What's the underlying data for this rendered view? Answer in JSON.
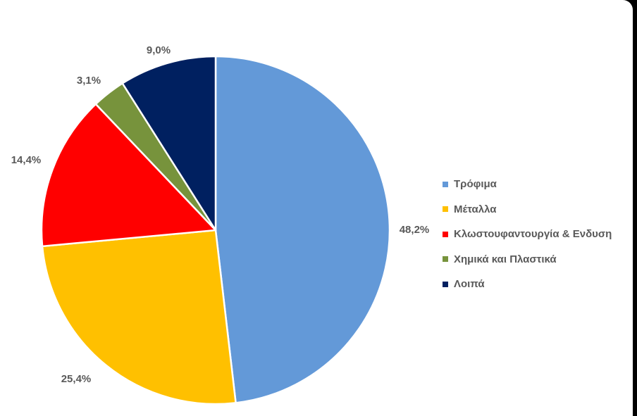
{
  "chart_data": {
    "type": "pie",
    "categories": [
      "Τρόφιμα",
      "Μέταλλα",
      "Κλωστουφαντουργία & Ενδυση",
      "Χημικά και Πλαστικά",
      "Λοιπά"
    ],
    "values": [
      48.2,
      25.4,
      14.4,
      3.1,
      9.0
    ],
    "data_labels": [
      "48,2%",
      "25,4%",
      "14,4%",
      "3,1%",
      "9,0%"
    ],
    "colors": [
      "#6399D8",
      "#FFC000",
      "#FF0000",
      "#77933C",
      "#002060"
    ],
    "start_angle_deg": 0,
    "direction": "clockwise",
    "legend_position": "right",
    "title": "",
    "slice_border_color": "#FFFFFF"
  }
}
